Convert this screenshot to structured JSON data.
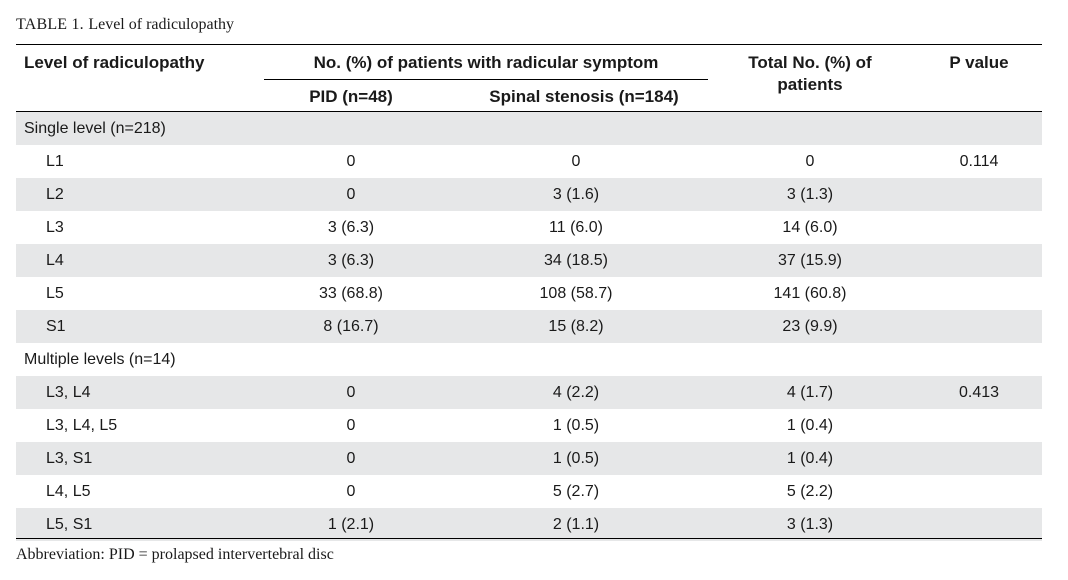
{
  "caption": {
    "label": "TABLE 1.",
    "title": "Level of radiculopathy"
  },
  "header": {
    "col_level": "Level of radiculopathy",
    "col_group": "No. (%) of patients with radicular symptom",
    "col_pid": "PID (n=48)",
    "col_stenosis": "Spinal stenosis (n=184)",
    "col_total_line1": "Total No. (%) of",
    "col_total_line2": "patients",
    "col_p": "P value"
  },
  "rows": [
    {
      "type": "group",
      "label": "Single level (n=218)"
    },
    {
      "type": "data",
      "label": "L1",
      "pid": "0",
      "stenosis": "0",
      "total": "0",
      "p": "0.114"
    },
    {
      "type": "data",
      "label": "L2",
      "pid": "0",
      "stenosis": "3 (1.6)",
      "total": "3 (1.3)",
      "p": ""
    },
    {
      "type": "data",
      "label": "L3",
      "pid": "3 (6.3)",
      "stenosis": "11 (6.0)",
      "total": "14 (6.0)",
      "p": ""
    },
    {
      "type": "data",
      "label": "L4",
      "pid": "3 (6.3)",
      "stenosis": "34 (18.5)",
      "total": "37 (15.9)",
      "p": ""
    },
    {
      "type": "data",
      "label": "L5",
      "pid": "33 (68.8)",
      "stenosis": "108 (58.7)",
      "total": "141 (60.8)",
      "p": ""
    },
    {
      "type": "data",
      "label": "S1",
      "pid": "8 (16.7)",
      "stenosis": "15 (8.2)",
      "total": "23 (9.9)",
      "p": ""
    },
    {
      "type": "group",
      "label": "Multiple levels (n=14)"
    },
    {
      "type": "data",
      "label": "L3, L4",
      "pid": "0",
      "stenosis": "4 (2.2)",
      "total": "4 (1.7)",
      "p": "0.413"
    },
    {
      "type": "data",
      "label": "L3, L4, L5",
      "pid": "0",
      "stenosis": "1 (0.5)",
      "total": "1 (0.4)",
      "p": ""
    },
    {
      "type": "data",
      "label": "L3, S1",
      "pid": "0",
      "stenosis": "1 (0.5)",
      "total": "1 (0.4)",
      "p": ""
    },
    {
      "type": "data",
      "label": "L4, L5",
      "pid": "0",
      "stenosis": "5 (2.7)",
      "total": "5 (2.2)",
      "p": ""
    },
    {
      "type": "data",
      "label": "L5, S1",
      "pid": "1 (2.1)",
      "stenosis": "2 (1.1)",
      "total": "3 (1.3)",
      "p": ""
    }
  ],
  "footnote": "Abbreviation: PID = prolapsed intervertebral disc"
}
